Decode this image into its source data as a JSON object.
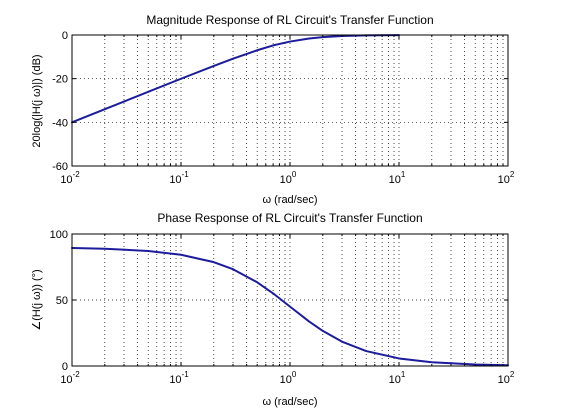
{
  "chart_data": [
    {
      "type": "line",
      "title": "Magnitude Response of RL Circuit's Transfer Function",
      "xlabel": "ω (rad/sec)",
      "ylabel": "20log(|H(j ω)|) (dB)",
      "x_scale": "log",
      "xlim": [
        0.01,
        100
      ],
      "ylim": [
        -60,
        0
      ],
      "x_tick_labels": [
        {
          "base": "10",
          "exp": "-2"
        },
        {
          "base": "10",
          "exp": "-1"
        },
        {
          "base": "10",
          "exp": "0"
        },
        {
          "base": "10",
          "exp": "1"
        },
        {
          "base": "10",
          "exp": "2"
        }
      ],
      "y_tick_labels": [
        "0",
        "-20",
        "-40",
        "-60"
      ],
      "grid": true,
      "series": [
        {
          "color": "#1c1c9c",
          "x": [
            0.01,
            0.02,
            0.05,
            0.1,
            0.2,
            0.3,
            0.5,
            0.7,
            1,
            1.5,
            2,
            3,
            5,
            10
          ],
          "y": [
            -40.0,
            -33.98,
            -26.03,
            -20.04,
            -14.15,
            -10.83,
            -6.99,
            -4.77,
            -3.01,
            -1.6,
            -0.97,
            -0.46,
            -0.17,
            -0.04
          ]
        }
      ]
    },
    {
      "type": "line",
      "title": "Phase Response of RL Circuit's Transfer Function",
      "xlabel": "ω (rad/sec)",
      "ylabel": "∠(H(j ω)) (°)",
      "x_scale": "log",
      "xlim": [
        0.01,
        100
      ],
      "ylim": [
        0,
        100
      ],
      "x_tick_labels": [
        {
          "base": "10",
          "exp": "-2"
        },
        {
          "base": "10",
          "exp": "-1"
        },
        {
          "base": "10",
          "exp": "0"
        },
        {
          "base": "10",
          "exp": "1"
        },
        {
          "base": "10",
          "exp": "2"
        }
      ],
      "y_tick_labels": [
        "100",
        "50",
        "0"
      ],
      "grid": true,
      "series": [
        {
          "color": "#1c1c9c",
          "x": [
            0.01,
            0.02,
            0.05,
            0.1,
            0.2,
            0.3,
            0.5,
            0.7,
            1,
            1.5,
            2,
            3,
            5,
            10,
            20,
            50,
            100
          ],
          "y": [
            89.43,
            88.85,
            87.14,
            84.29,
            78.69,
            73.3,
            63.43,
            55.01,
            45.0,
            33.69,
            26.57,
            18.43,
            11.31,
            5.71,
            2.86,
            1.15,
            0.57
          ]
        }
      ]
    }
  ]
}
